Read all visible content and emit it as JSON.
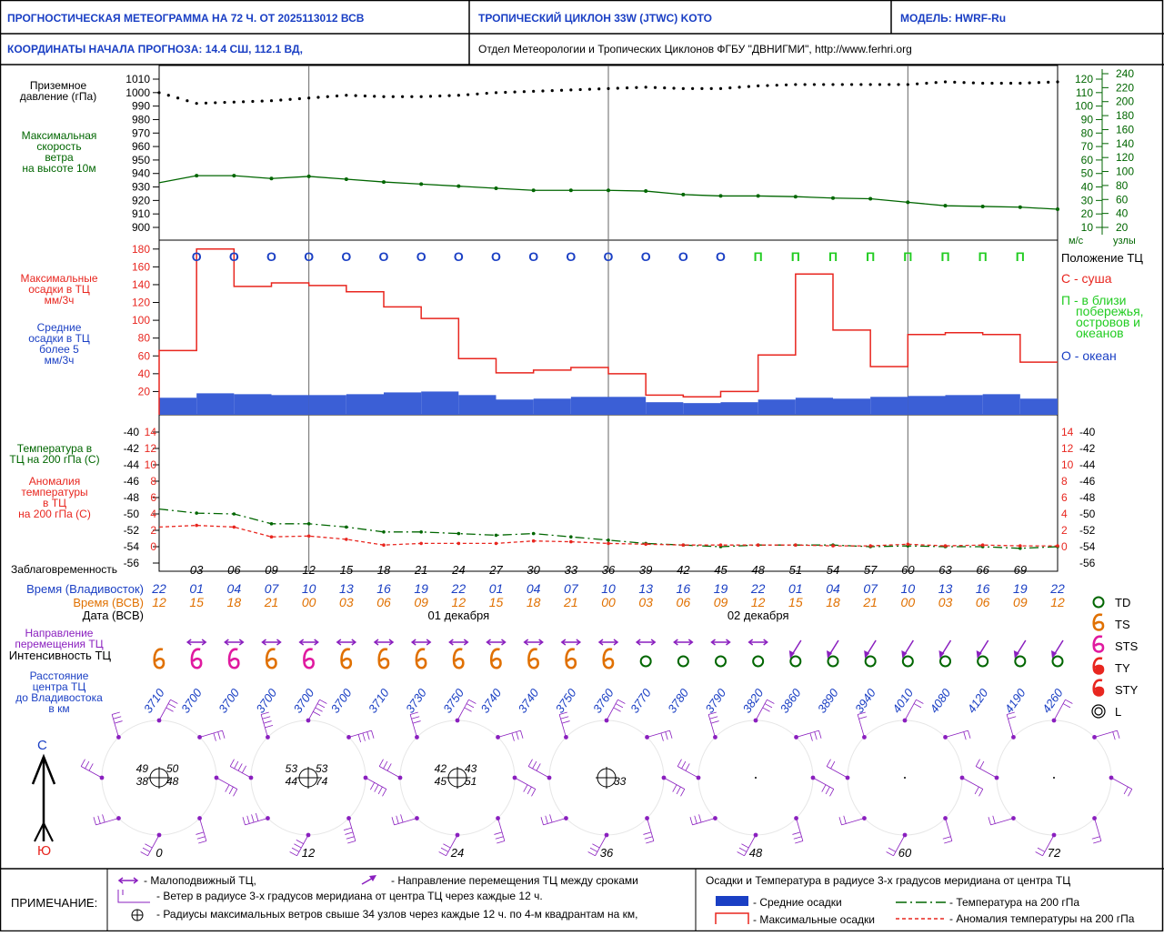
{
  "header": {
    "title": "ПРОГНОСТИЧЕСКАЯ МЕТЕОГРАММА НА 72 Ч. ОТ 2025113012 ВСВ",
    "cyclone": "ТРОПИЧЕСКИЙ ЦИКЛОН  33W  (JTWC)  KOTO",
    "model": "МОДЕЛЬ:   HWRF-Ru",
    "coords": "КООРДИНАТЫ НАЧАЛА ПРОГНОЗА:  14.4  СШ,   112.1  ВД,",
    "dept": "Отдел Метеорологии и Тропических Циклонов ФГБУ \"ДВНИГМИ\",  http://www.ferhri.org"
  },
  "labels": {
    "pressure": [
      "Приземное",
      "давление (гПа)"
    ],
    "wind": [
      "Максимальная",
      "скорость",
      "ветра",
      "на высоте 10м"
    ],
    "maxprecip": [
      "Максимальные",
      "осадки в ТЦ",
      "мм/3ч"
    ],
    "meanprecip": [
      "Средние",
      "осадки в ТЦ",
      "более 5",
      "мм/3ч"
    ],
    "temp": [
      "Температура в",
      "ТЦ на 200 гПа (С)"
    ],
    "anom": [
      "Аномалия",
      "температуры",
      "в ТЦ",
      "на 200 гПа (С)"
    ],
    "lead": "Заблаговременность",
    "vlad_time": "Время (Владивосток)",
    "utc_time": "Время (ВСВ)",
    "date": "Дата (ВСВ)",
    "direction": [
      "Направление",
      "перемещения ТЦ"
    ],
    "intensity": "Интенсивность ТЦ",
    "distance": [
      "Расстояние",
      "центра ТЦ",
      "до Владивостока",
      "в км"
    ],
    "north": "С",
    "south": "Ю",
    "ms": "м/с",
    "knots": "узлы",
    "position_title": "Положение ТЦ",
    "pos_land": "С - суша",
    "pos_coast": [
      "П - в близи",
      "побережья,",
      "островов и",
      "океанов"
    ],
    "pos_ocean": "О - океан"
  },
  "intensity_legend": [
    "TD",
    "TS",
    "STS",
    "TY",
    "STY",
    "L"
  ],
  "notes": {
    "title": "ПРИМЕЧАНИЕ:",
    "stationary": "- Малоподвижный ТЦ,",
    "direction": "- Направление перемещения ТЦ между сроками",
    "winds": "- Ветер в радиусе 3-х градусов меридиана от центра ТЦ через каждые 12 ч.",
    "radii": "- Радиусы максимальных ветров свыше 34 узлов через каждые 12 ч. по 4-м квадрантам на км,",
    "legend_title": "Осадки и Температура в радиусе 3-х градусов меридиана от центра ТЦ",
    "mean_precip": "- Средние осадки",
    "max_precip": "- Максимальные осадки",
    "temp": "- Температура на 200 гПа",
    "anom": "- Аномалия температуры на 200 гПа"
  },
  "colors": {
    "blue": "#1a3fc4",
    "green": "#006600",
    "red": "#e8261f",
    "orange": "#e07000",
    "magenta": "#e0199f",
    "purple": "#8a1fbf",
    "precip_fill": "#3b5fd6",
    "bright_green": "#22cc22"
  },
  "chart_data": [
    {
      "type": "line",
      "name": "pressure_and_wind",
      "x": [
        0,
        3,
        6,
        9,
        12,
        15,
        18,
        21,
        24,
        27,
        30,
        33,
        36,
        39,
        42,
        45,
        48,
        51,
        54,
        57,
        60,
        63,
        66,
        69,
        72
      ],
      "pressure_ticks": [
        1010,
        1000,
        990,
        980,
        970,
        960,
        950,
        940,
        930,
        920,
        910,
        900
      ],
      "pressure_ylim": [
        900,
        1010
      ],
      "pressure": [
        1000,
        992,
        993,
        994,
        996,
        998,
        997,
        997,
        998,
        1000,
        1001,
        1002,
        1003,
        1004,
        1003,
        1003,
        1005,
        1006,
        1006,
        1006,
        1006,
        1008,
        1007,
        1007,
        1008
      ],
      "wind_ms_ticks": [
        120,
        110,
        100,
        90,
        80,
        70,
        60,
        50,
        40,
        30,
        20,
        10
      ],
      "wind_kt_ticks": [
        240,
        220,
        200,
        180,
        160,
        140,
        120,
        100,
        80,
        60,
        40,
        20
      ],
      "wind_kt": [
        84,
        94,
        94,
        90,
        93,
        89,
        85,
        82,
        79,
        76,
        73,
        73,
        73,
        72,
        67,
        65,
        65,
        64,
        62,
        61,
        56,
        51,
        50,
        49,
        46
      ]
    },
    {
      "type": "bar",
      "name": "precipitation",
      "y_ticks": [
        180,
        160,
        140,
        120,
        100,
        80,
        60,
        40,
        20
      ],
      "ylim": [
        0,
        190
      ],
      "positions": [
        "О",
        "О",
        "О",
        "О",
        "О",
        "О",
        "О",
        "О",
        "О",
        "О",
        "О",
        "О",
        "О",
        "О",
        "О",
        "П",
        "П",
        "П",
        "П",
        "П",
        "П",
        "П",
        "П"
      ],
      "max": [
        66,
        180,
        138,
        142,
        139,
        132,
        115,
        102,
        57,
        41,
        44,
        47,
        40,
        16,
        14,
        20,
        61,
        152,
        89,
        48,
        84,
        86,
        84,
        53
      ],
      "mean": [
        13,
        18,
        17,
        16,
        16,
        17,
        19,
        20,
        16,
        11,
        12,
        14,
        14,
        8,
        7,
        8,
        11,
        13,
        12,
        14,
        15,
        16,
        17,
        12
      ]
    },
    {
      "type": "line",
      "name": "temperature_200hPa",
      "temp_ticks": [
        -40,
        -42,
        -44,
        -46,
        -48,
        -50,
        -52,
        -54,
        -56
      ],
      "anom_ticks": [
        14,
        12,
        10,
        8,
        6,
        4,
        2,
        0
      ],
      "temp": [
        -49.4,
        -49.9,
        -50.0,
        -51.2,
        -51.2,
        -51.6,
        -52.2,
        -52.2,
        -52.4,
        -52.6,
        -52.4,
        -52.8,
        -53.2,
        -53.6,
        -53.8,
        -54.0,
        -53.8,
        -53.8,
        -53.8,
        -54.0,
        -53.9,
        -54.0,
        -54.0,
        -54.2,
        -54.0
      ],
      "anom": [
        2.4,
        2.6,
        2.4,
        1.2,
        1.3,
        0.9,
        0.2,
        0.4,
        0.4,
        0.4,
        0.7,
        0.6,
        0.4,
        0.3,
        0.2,
        0.2,
        0.2,
        0.2,
        0.1,
        0.1,
        0.3,
        0.1,
        0.2,
        0.1,
        0.1
      ]
    }
  ],
  "time_axis": {
    "lead": [
      "03",
      "06",
      "09",
      "12",
      "15",
      "18",
      "21",
      "24",
      "27",
      "30",
      "33",
      "36",
      "39",
      "42",
      "45",
      "48",
      "51",
      "54",
      "57",
      "60",
      "63",
      "66",
      "69"
    ],
    "vlad": [
      "22",
      "01",
      "04",
      "07",
      "10",
      "13",
      "16",
      "19",
      "22",
      "01",
      "04",
      "07",
      "10",
      "13",
      "16",
      "19",
      "22",
      "01",
      "04",
      "07",
      "10",
      "13",
      "16",
      "19",
      "22"
    ],
    "utc": [
      "12",
      "15",
      "18",
      "21",
      "00",
      "03",
      "06",
      "09",
      "12",
      "15",
      "18",
      "21",
      "00",
      "03",
      "06",
      "09",
      "12",
      "15",
      "18",
      "21",
      "00",
      "03",
      "06",
      "09",
      "12"
    ],
    "dates": [
      "01 декабря",
      "02 декабря"
    ]
  },
  "track": {
    "arrows": [
      "stationary",
      "stationary",
      "stationary",
      "stationary",
      "stationary",
      "stationary",
      "stationary",
      "stationary",
      "stationary",
      "stationary",
      "stationary",
      "stationary",
      "stationary",
      "stationary",
      "stationary",
      "stationary",
      "stationary",
      "SW",
      "SW",
      "SW",
      "SW",
      "SW",
      "SW",
      "SW",
      "SW"
    ],
    "intensity": [
      "TS",
      "STS",
      "STS",
      "TS",
      "STS",
      "TS",
      "TS",
      "TS",
      "TS",
      "TS",
      "TS",
      "TS",
      "TS",
      "TD",
      "TD",
      "TD",
      "TD",
      "TD",
      "TD",
      "TD",
      "TD",
      "TD",
      "TD",
      "TD",
      "TD"
    ],
    "distance": [
      "3710",
      "3700",
      "3700",
      "3700",
      "3700",
      "3700",
      "3710",
      "3730",
      "3750",
      "3740",
      "3740",
      "3750",
      "3760",
      "3770",
      "3780",
      "3790",
      "3820",
      "3860",
      "3890",
      "3940",
      "4010",
      "4080",
      "4120",
      "4190",
      "4260"
    ]
  },
  "wind_rings": [
    {
      "hour": "0",
      "radii": [
        "49",
        "50",
        "38",
        "48"
      ]
    },
    {
      "hour": "12",
      "radii": [
        "53",
        "53",
        "44",
        "74"
      ]
    },
    {
      "hour": "24",
      "radii": [
        "42",
        "43",
        "45",
        "51"
      ]
    },
    {
      "hour": "36",
      "radii": [
        "",
        "",
        "",
        "33"
      ]
    },
    {
      "hour": "48",
      "radii": []
    },
    {
      "hour": "60",
      "radii": []
    },
    {
      "hour": "72",
      "radii": []
    }
  ]
}
